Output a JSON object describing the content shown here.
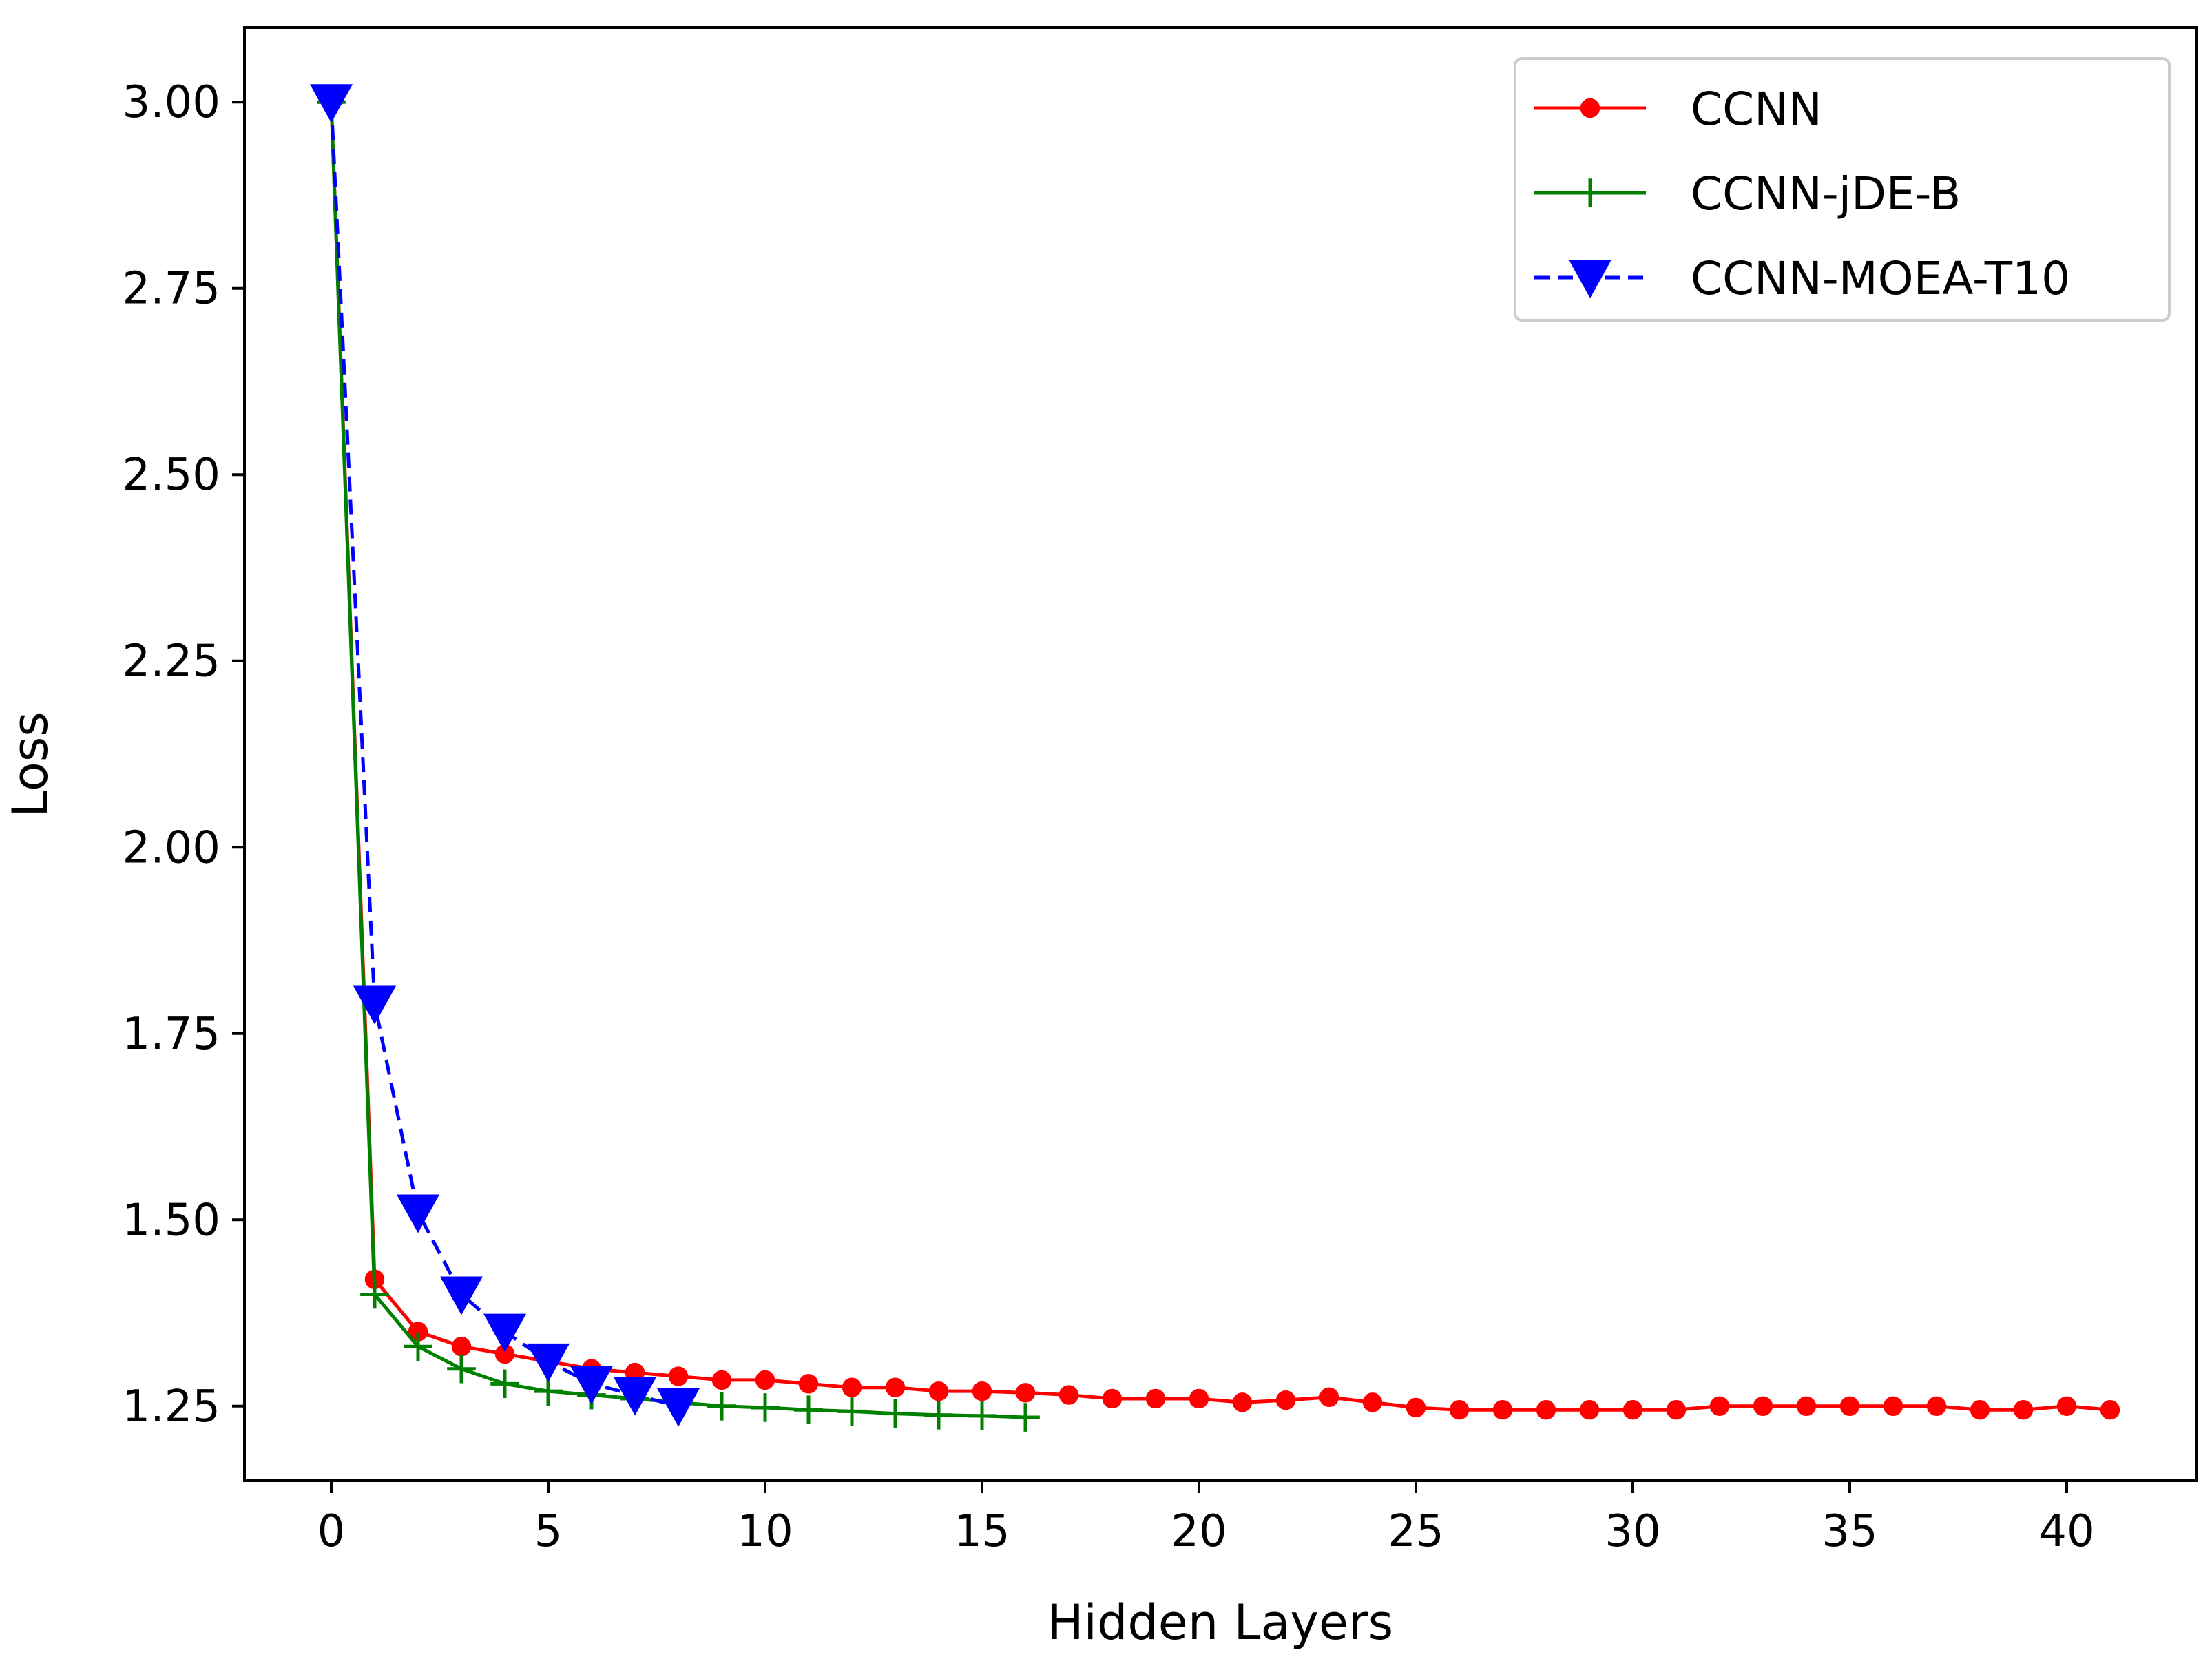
{
  "chart_data": {
    "type": "line",
    "xlabel": "Hidden Layers",
    "ylabel": "Loss",
    "xlim": [
      -2,
      43
    ],
    "ylim": [
      1.15,
      3.1
    ],
    "xticks": [
      0,
      5,
      10,
      15,
      20,
      25,
      30,
      35,
      40
    ],
    "yticks": [
      1.25,
      1.5,
      1.75,
      2.0,
      2.25,
      2.5,
      2.75,
      3.0
    ],
    "xtick_labels": [
      "0",
      "5",
      "10",
      "15",
      "20",
      "25",
      "30",
      "35",
      "40"
    ],
    "ytick_labels": [
      "1.25",
      "1.50",
      "1.75",
      "2.00",
      "2.25",
      "2.50",
      "2.75",
      "3.00"
    ],
    "grid": false,
    "legend_position": "top-right",
    "series": [
      {
        "name": "CCNN",
        "color": "#ff0000",
        "marker": "circle",
        "linestyle": "solid",
        "x": [
          0,
          1,
          2,
          3,
          4,
          5,
          6,
          7,
          8,
          9,
          10,
          11,
          12,
          13,
          14,
          15,
          16,
          17,
          18,
          19,
          20,
          21,
          22,
          23,
          24,
          25,
          26,
          27,
          28,
          29,
          30,
          31,
          32,
          33,
          34,
          35,
          36,
          37,
          38,
          39,
          40,
          41
        ],
        "y": [
          3.0,
          1.42,
          1.35,
          1.33,
          1.32,
          1.31,
          1.3,
          1.295,
          1.29,
          1.285,
          1.285,
          1.28,
          1.275,
          1.275,
          1.27,
          1.27,
          1.268,
          1.265,
          1.26,
          1.26,
          1.26,
          1.255,
          1.258,
          1.262,
          1.255,
          1.248,
          1.245,
          1.245,
          1.245,
          1.245,
          1.245,
          1.245,
          1.25,
          1.25,
          1.25,
          1.25,
          1.25,
          1.25,
          1.245,
          1.245,
          1.25,
          1.245
        ]
      },
      {
        "name": "CCNN-jDE-B",
        "color": "#008000",
        "marker": "plus",
        "linestyle": "solid",
        "x": [
          0,
          1,
          2,
          3,
          4,
          5,
          6,
          7,
          8,
          9,
          10,
          11,
          12,
          13,
          14,
          15,
          16
        ],
        "y": [
          3.0,
          1.4,
          1.33,
          1.3,
          1.28,
          1.27,
          1.265,
          1.26,
          1.255,
          1.25,
          1.248,
          1.245,
          1.243,
          1.24,
          1.238,
          1.237,
          1.235
        ]
      },
      {
        "name": "CCNN-MOEA-T10",
        "color": "#0000ff",
        "marker": "triangle-down",
        "linestyle": "dashed",
        "x": [
          0,
          1,
          2,
          3,
          4,
          5,
          6,
          7,
          8
        ],
        "y": [
          3.0,
          1.79,
          1.51,
          1.4,
          1.35,
          1.31,
          1.28,
          1.265,
          1.25
        ]
      }
    ]
  }
}
